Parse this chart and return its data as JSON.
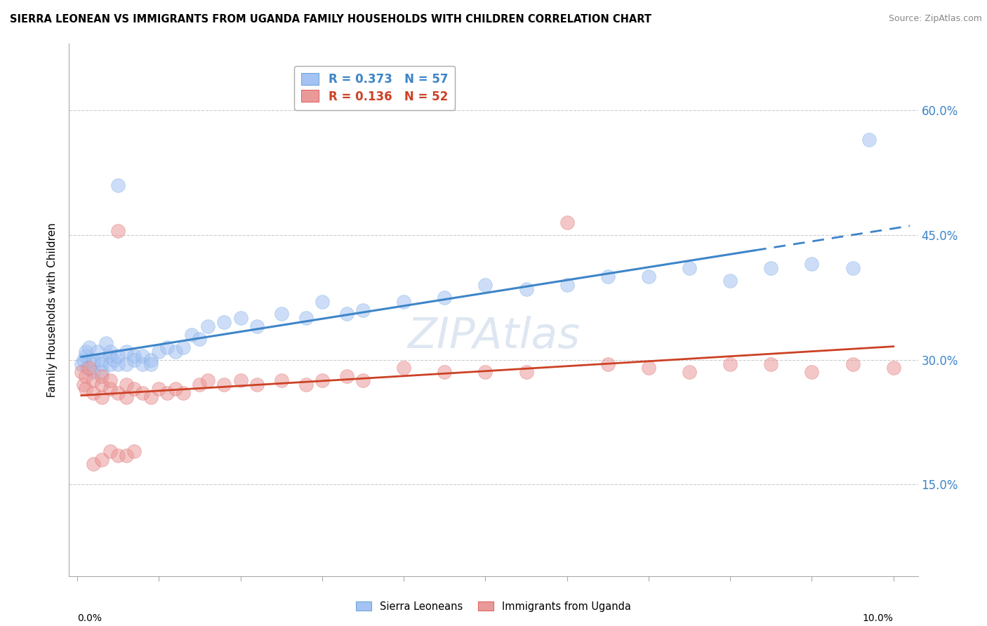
{
  "title": "SIERRA LEONEAN VS IMMIGRANTS FROM UGANDA FAMILY HOUSEHOLDS WITH CHILDREN CORRELATION CHART",
  "source": "Source: ZipAtlas.com",
  "ylabel": "Family Households with Children",
  "ytick_vals": [
    0.15,
    0.3,
    0.45,
    0.6
  ],
  "ytick_labels": [
    "15.0%",
    "30.0%",
    "45.0%",
    "60.0%"
  ],
  "ylim": [
    0.04,
    0.68
  ],
  "xlim": [
    -0.001,
    0.103
  ],
  "legend1_R": "0.373",
  "legend1_N": "57",
  "legend2_R": "0.136",
  "legend2_N": "52",
  "blue_fill": "#a4c2f4",
  "pink_fill": "#ea9999",
  "blue_line": "#3d85c8",
  "pink_line": "#cc4125",
  "watermark": "ZIPAtlas",
  "sierra_x": [
    0.0005,
    0.0008,
    0.001,
    0.001,
    0.0012,
    0.0015,
    0.002,
    0.002,
    0.002,
    0.0025,
    0.003,
    0.003,
    0.003,
    0.0035,
    0.004,
    0.004,
    0.004,
    0.0045,
    0.005,
    0.005,
    0.005,
    0.006,
    0.006,
    0.007,
    0.007,
    0.008,
    0.008,
    0.009,
    0.009,
    0.01,
    0.011,
    0.012,
    0.013,
    0.014,
    0.015,
    0.016,
    0.018,
    0.02,
    0.022,
    0.025,
    0.028,
    0.03,
    0.033,
    0.035,
    0.04,
    0.045,
    0.05,
    0.055,
    0.06,
    0.065,
    0.07,
    0.075,
    0.08,
    0.085,
    0.09,
    0.095,
    0.097
  ],
  "sierra_y": [
    0.295,
    0.3,
    0.305,
    0.31,
    0.29,
    0.315,
    0.3,
    0.295,
    0.285,
    0.31,
    0.3,
    0.295,
    0.285,
    0.32,
    0.305,
    0.295,
    0.31,
    0.3,
    0.295,
    0.305,
    0.51,
    0.295,
    0.31,
    0.305,
    0.3,
    0.295,
    0.305,
    0.3,
    0.295,
    0.31,
    0.315,
    0.31,
    0.315,
    0.33,
    0.325,
    0.34,
    0.345,
    0.35,
    0.34,
    0.355,
    0.35,
    0.37,
    0.355,
    0.36,
    0.37,
    0.375,
    0.39,
    0.385,
    0.39,
    0.4,
    0.4,
    0.41,
    0.395,
    0.41,
    0.415,
    0.41,
    0.565
  ],
  "uganda_x": [
    0.0005,
    0.0008,
    0.001,
    0.001,
    0.0015,
    0.002,
    0.002,
    0.003,
    0.003,
    0.003,
    0.004,
    0.004,
    0.005,
    0.005,
    0.006,
    0.006,
    0.007,
    0.008,
    0.009,
    0.01,
    0.011,
    0.012,
    0.013,
    0.015,
    0.016,
    0.018,
    0.02,
    0.022,
    0.025,
    0.028,
    0.03,
    0.033,
    0.035,
    0.04,
    0.045,
    0.05,
    0.055,
    0.06,
    0.065,
    0.07,
    0.075,
    0.08,
    0.085,
    0.09,
    0.095,
    0.1,
    0.002,
    0.003,
    0.004,
    0.005,
    0.006,
    0.007
  ],
  "uganda_y": [
    0.285,
    0.27,
    0.28,
    0.265,
    0.29,
    0.275,
    0.26,
    0.27,
    0.255,
    0.28,
    0.265,
    0.275,
    0.26,
    0.455,
    0.27,
    0.255,
    0.265,
    0.26,
    0.255,
    0.265,
    0.26,
    0.265,
    0.26,
    0.27,
    0.275,
    0.27,
    0.275,
    0.27,
    0.275,
    0.27,
    0.275,
    0.28,
    0.275,
    0.29,
    0.285,
    0.285,
    0.285,
    0.465,
    0.295,
    0.29,
    0.285,
    0.295,
    0.295,
    0.285,
    0.295,
    0.29,
    0.175,
    0.18,
    0.19,
    0.185,
    0.185,
    0.19
  ]
}
